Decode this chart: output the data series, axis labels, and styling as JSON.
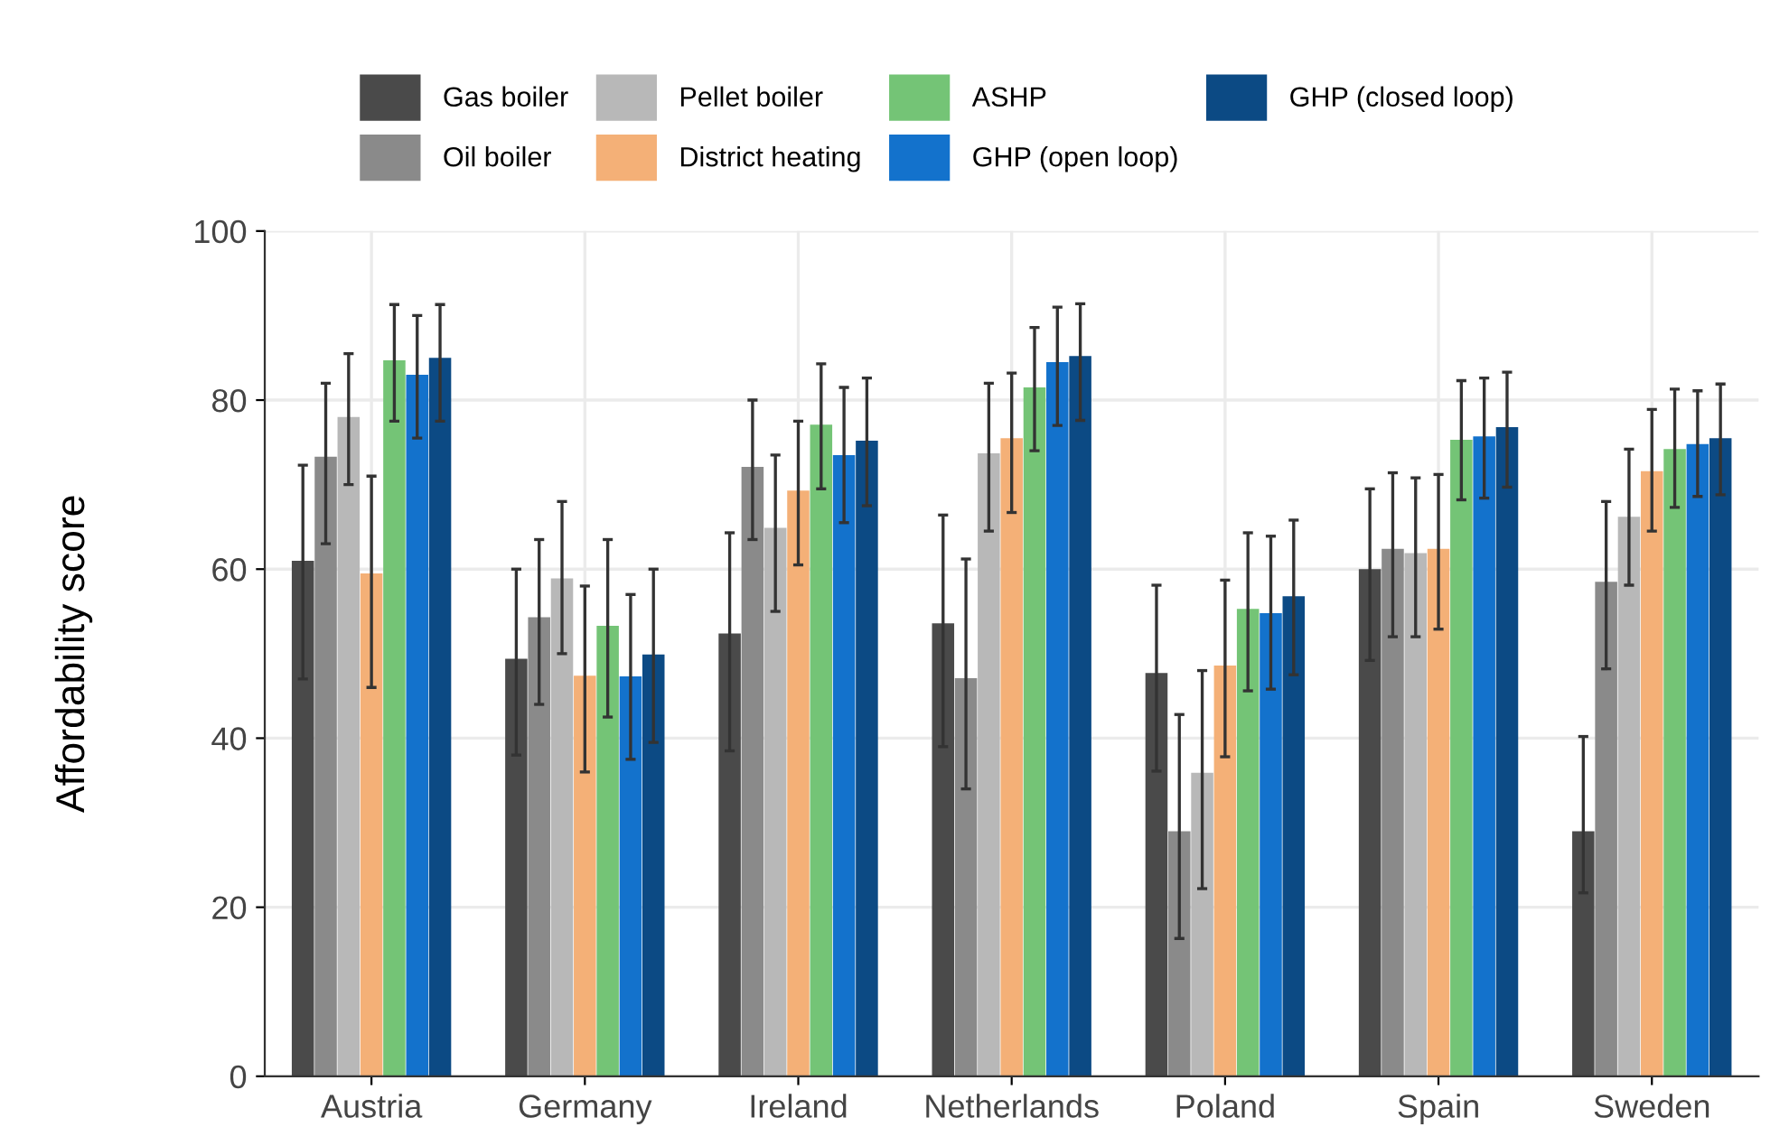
{
  "chart_data": {
    "type": "bar",
    "ylabel": "Affordability score",
    "categories": [
      "Austria",
      "Germany",
      "Ireland",
      "Netherlands",
      "Poland",
      "Spain",
      "Sweden"
    ],
    "series": [
      {
        "name": "Gas boiler",
        "color": "#4a4a4a",
        "values": [
          61,
          49.4,
          52.4,
          53.6,
          47.7,
          60,
          29
        ],
        "errors": [
          [
            47,
            72.3
          ],
          [
            38,
            60
          ],
          [
            38.5,
            64.3
          ],
          [
            39,
            66.4
          ],
          [
            36.1,
            58.1
          ],
          [
            49.2,
            69.5
          ],
          [
            21.7,
            40.2
          ]
        ]
      },
      {
        "name": "Oil boiler",
        "color": "#8a8a8a",
        "values": [
          73.3,
          54.3,
          72.1,
          47.1,
          29,
          62.4,
          58.5
        ],
        "errors": [
          [
            63,
            82
          ],
          [
            44,
            63.5
          ],
          [
            63.5,
            80
          ],
          [
            34,
            61.2
          ],
          [
            16.3,
            42.8
          ],
          [
            52,
            71.4
          ],
          [
            48.2,
            68
          ]
        ]
      },
      {
        "name": "Pellet boiler",
        "color": "#b8b8b8",
        "values": [
          78,
          58.9,
          64.9,
          73.7,
          35.9,
          61.9,
          66.2
        ],
        "errors": [
          [
            70,
            85.5
          ],
          [
            50,
            68
          ],
          [
            55,
            73.5
          ],
          [
            64.5,
            82
          ],
          [
            22.2,
            48
          ],
          [
            52,
            70.8
          ],
          [
            58.1,
            74.2
          ]
        ]
      },
      {
        "name": "District heating",
        "color": "#f4b077",
        "values": [
          59.5,
          47.4,
          69.3,
          75.5,
          48.6,
          62.4,
          71.6
        ],
        "errors": [
          [
            46,
            71
          ],
          [
            36,
            58
          ],
          [
            60.5,
            77.5
          ],
          [
            66.7,
            83.2
          ],
          [
            37.8,
            58.7
          ],
          [
            52.9,
            71.2
          ],
          [
            64.5,
            78.9
          ]
        ]
      },
      {
        "name": "ASHP",
        "color": "#74c476",
        "values": [
          84.7,
          53.3,
          77.1,
          81.5,
          55.3,
          75.3,
          74.2
        ],
        "errors": [
          [
            77.5,
            91.3
          ],
          [
            42.5,
            63.5
          ],
          [
            69.5,
            84.3
          ],
          [
            74,
            88.6
          ],
          [
            45.6,
            64.3
          ],
          [
            68.2,
            82.3
          ],
          [
            67.3,
            81.3
          ]
        ]
      },
      {
        "name": "GHP (open loop)",
        "color": "#1372cc",
        "values": [
          83,
          47.3,
          73.5,
          84.5,
          54.8,
          75.7,
          74.8
        ],
        "errors": [
          [
            75.5,
            90
          ],
          [
            37.5,
            57
          ],
          [
            65.5,
            81.5
          ],
          [
            77,
            91
          ],
          [
            45.8,
            63.9
          ],
          [
            68.4,
            82.6
          ],
          [
            68.6,
            81.1
          ]
        ]
      },
      {
        "name": "GHP (closed loop)",
        "color": "#0c4a84",
        "values": [
          85,
          49.9,
          75.2,
          85.2,
          56.8,
          76.8,
          75.5
        ],
        "errors": [
          [
            77.5,
            91.3
          ],
          [
            39.5,
            60
          ],
          [
            67.5,
            82.6
          ],
          [
            77.6,
            91.4
          ],
          [
            47.5,
            65.8
          ],
          [
            69.7,
            83.3
          ],
          [
            68.8,
            81.9
          ]
        ]
      }
    ],
    "ylim": [
      0,
      100
    ],
    "yticks": [
      0,
      20,
      40,
      60,
      80,
      100
    ],
    "grid": true,
    "legend": "top"
  }
}
